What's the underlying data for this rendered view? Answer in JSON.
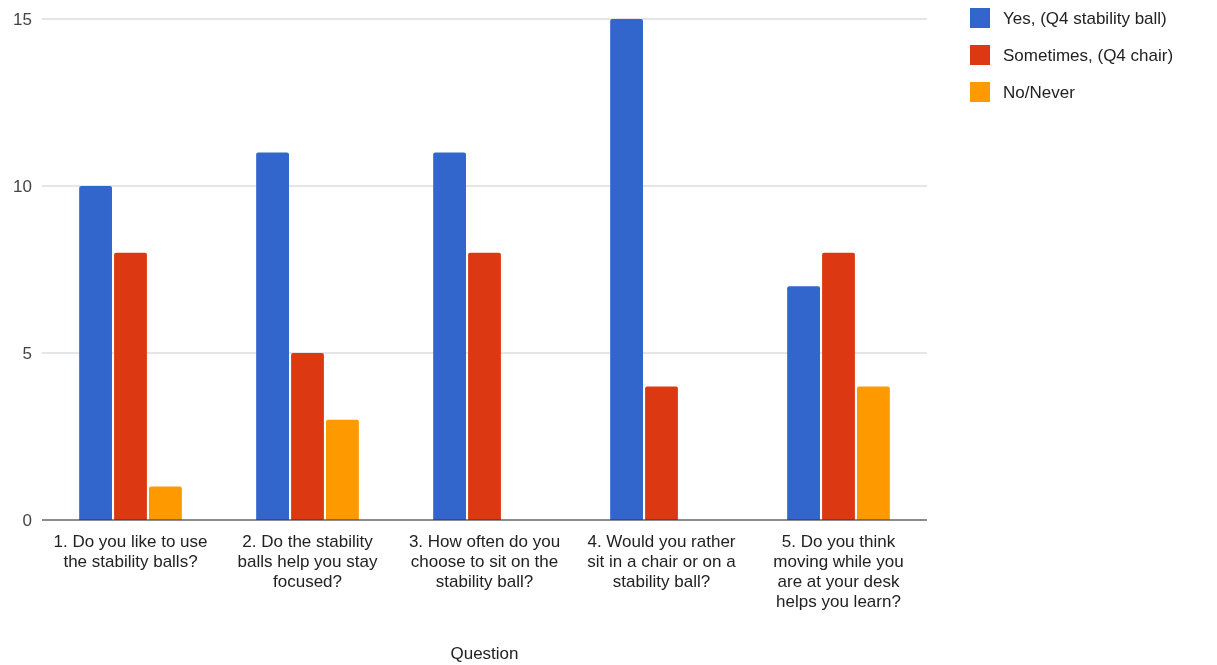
{
  "chart_data": {
    "type": "bar",
    "xlabel": "Question",
    "categories": [
      "1. Do you like to use the stability balls?",
      "2. Do the stability balls help you stay focused?",
      "3. How often do you choose to sit on the stability ball?",
      "4. Would you rather sit in a chair or on a stability ball?",
      "5. Do you think moving while you are at your desk helps you learn?"
    ],
    "series": [
      {
        "name": "Yes, (Q4 stability ball)",
        "color": "#3366cc",
        "values": [
          10,
          11,
          11,
          15,
          7
        ]
      },
      {
        "name": "Sometimes, (Q4 chair)",
        "color": "#dc3912",
        "values": [
          8,
          5,
          8,
          4,
          8
        ]
      },
      {
        "name": "No/Never",
        "color": "#ff9900",
        "values": [
          1,
          3,
          0,
          0,
          4
        ]
      }
    ],
    "ylim": [
      0,
      15
    ],
    "yticks": [
      0,
      5,
      10,
      15
    ],
    "grid": "y",
    "legend": "top right"
  }
}
